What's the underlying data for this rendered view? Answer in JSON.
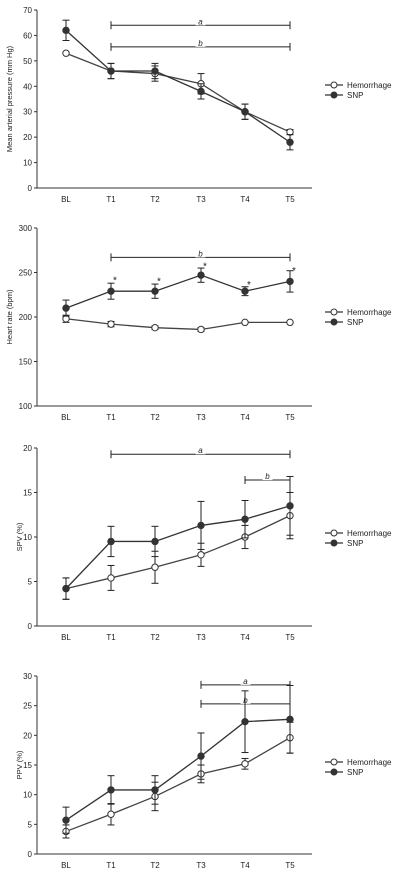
{
  "chart_data": [
    {
      "type": "line",
      "ylabel": "Mean arterial pressure (mm Hg)",
      "ylim": [
        0,
        70
      ],
      "yticks": [
        0,
        10,
        20,
        30,
        40,
        50,
        60,
        70
      ],
      "categories": [
        "BL",
        "T1",
        "T2",
        "T3",
        "T4",
        "T5"
      ],
      "series": [
        {
          "name": "Hemorrhage",
          "marker": "open",
          "values": [
            53,
            46,
            45,
            41,
            30,
            22
          ],
          "err": [
            0,
            3,
            3,
            4,
            3,
            1
          ]
        },
        {
          "name": "SNP",
          "marker": "filled",
          "values": [
            62,
            46,
            46,
            38,
            30,
            18
          ],
          "err": [
            4,
            3,
            3,
            3,
            3,
            3
          ]
        }
      ],
      "brackets": [
        {
          "label": "a",
          "from": "T1",
          "to": "T5",
          "y": 64
        },
        {
          "label": "b",
          "from": "T1",
          "to": "T5",
          "y": 55.5
        }
      ],
      "stars": [],
      "legend": "right"
    },
    {
      "type": "line",
      "ylabel": "Heart rate (bpm)",
      "ylim": [
        100,
        300
      ],
      "yticks": [
        100,
        150,
        200,
        250,
        300
      ],
      "categories": [
        "BL",
        "T1",
        "T2",
        "T3",
        "T4",
        "T5"
      ],
      "series": [
        {
          "name": "Hemorrhage",
          "marker": "open",
          "values": [
            198,
            192,
            188,
            186,
            194,
            194
          ],
          "err": [
            4,
            3,
            2,
            2,
            1,
            1
          ]
        },
        {
          "name": "SNP",
          "marker": "filled",
          "values": [
            210,
            229,
            229,
            247,
            229,
            240
          ],
          "err": [
            9,
            9,
            8,
            8,
            5,
            12
          ]
        }
      ],
      "brackets": [
        {
          "label": "b",
          "from": "T1",
          "to": "T5",
          "y": 267
        }
      ],
      "stars": [
        {
          "category": "T1",
          "label": "*",
          "y": 242
        },
        {
          "category": "T2",
          "label": "*",
          "y": 241
        },
        {
          "category": "T3",
          "label": "*",
          "y": 258
        },
        {
          "category": "T4",
          "label": "*",
          "y": 237
        },
        {
          "category": "T5",
          "label": "*",
          "y": 253
        }
      ],
      "legend": "right"
    },
    {
      "type": "line",
      "ylabel": "SPV (%)",
      "ylim": [
        0,
        20
      ],
      "yticks": [
        0,
        5,
        10,
        15,
        20
      ],
      "categories": [
        "BL",
        "T1",
        "T2",
        "T3",
        "T4",
        "T5"
      ],
      "series": [
        {
          "name": "Hemorrhage",
          "marker": "open",
          "values": [
            4.2,
            5.4,
            6.6,
            8.0,
            10.0,
            12.4
          ],
          "err": [
            1.2,
            1.4,
            1.8,
            1.3,
            1.3,
            2.6
          ]
        },
        {
          "name": "SNP",
          "marker": "filled",
          "values": [
            4.2,
            9.5,
            9.5,
            11.3,
            12.0,
            13.5
          ],
          "err": [
            1.2,
            1.7,
            1.7,
            2.7,
            2.1,
            3.3
          ]
        }
      ],
      "brackets": [
        {
          "label": "a",
          "from": "T1",
          "to": "T5",
          "y": 19.3
        },
        {
          "label": "b",
          "from": "T4",
          "to": "T5",
          "y": 16.4
        }
      ],
      "stars": [],
      "legend": "right"
    },
    {
      "type": "line",
      "ylabel": "PPV (%)",
      "ylim": [
        0,
        30
      ],
      "yticks": [
        0,
        5,
        10,
        15,
        20,
        25,
        30
      ],
      "categories": [
        "BL",
        "T1",
        "T2",
        "T3",
        "T4",
        "T5"
      ],
      "series": [
        {
          "name": "Hemorrhage",
          "marker": "open",
          "values": [
            3.8,
            6.7,
            9.7,
            13.5,
            15.2,
            19.6
          ],
          "err": [
            1.1,
            1.8,
            2.4,
            1.5,
            0.9,
            2.6
          ]
        },
        {
          "name": "SNP",
          "marker": "filled",
          "values": [
            5.7,
            10.8,
            10.8,
            16.5,
            22.3,
            22.7
          ],
          "err": [
            2.2,
            2.4,
            2.4,
            3.9,
            5.2,
            5.7
          ]
        }
      ],
      "brackets": [
        {
          "label": "a",
          "from": "T3",
          "to": "T5",
          "y": 28.5
        },
        {
          "label": "b",
          "from": "T3",
          "to": "T5",
          "y": 25.3
        }
      ],
      "stars": [],
      "legend": "right"
    }
  ]
}
